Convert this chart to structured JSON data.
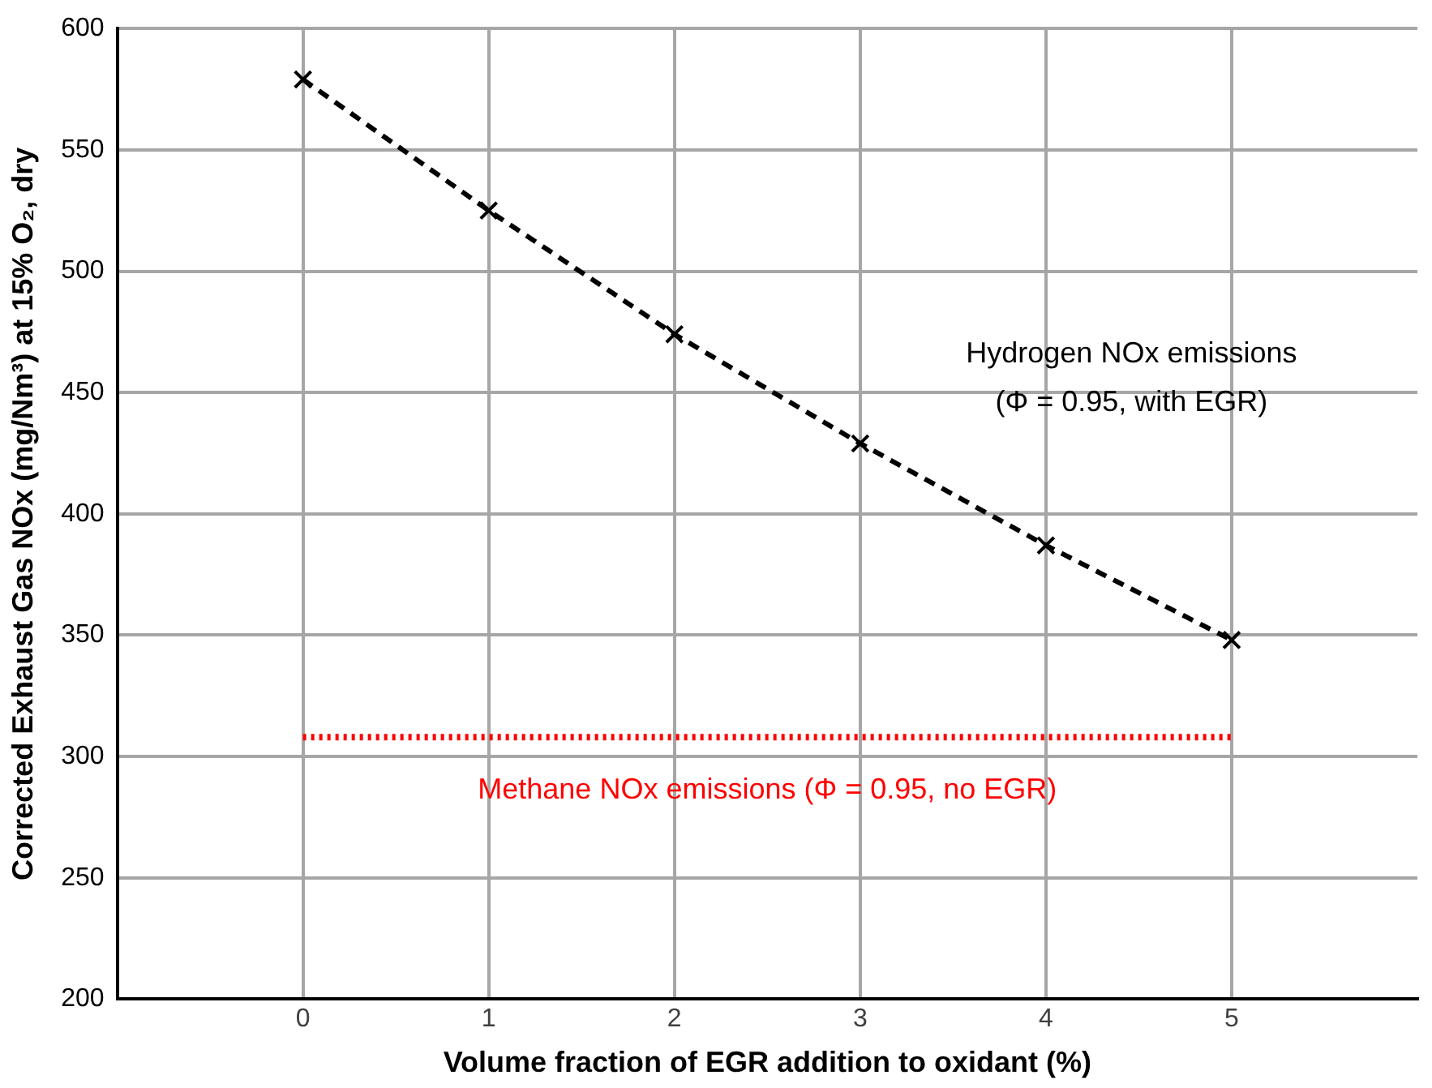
{
  "chart_data": {
    "type": "line",
    "xlabel": "Volume fraction of EGR addition to oxidant (%)",
    "ylabel": "Corrected Exhaust Gas NOx (mg/Nm³) at 15% O₂, dry",
    "x": [
      0,
      1,
      2,
      3,
      4,
      5
    ],
    "series": [
      {
        "name": "Hydrogen NOx emissions\n(Φ = 0.95, with EGR)",
        "color": "#000000",
        "values": [
          579,
          525,
          474,
          429,
          387,
          348
        ],
        "marker": "cross",
        "line_style": "dashed"
      },
      {
        "name": "Methane NOx emissions (Φ = 0.95, no EGR)",
        "color": "#ff0000",
        "x": [
          0,
          5
        ],
        "values": [
          308,
          308
        ],
        "marker": "none",
        "line_style": "dotted"
      }
    ],
    "xlim": [
      -1,
      6
    ],
    "xticks": [
      0,
      1,
      2,
      3,
      4,
      5
    ],
    "ylim": [
      200,
      600
    ],
    "yticks": [
      200,
      250,
      300,
      350,
      400,
      450,
      500,
      550,
      600
    ],
    "grid": true,
    "legend": false
  }
}
